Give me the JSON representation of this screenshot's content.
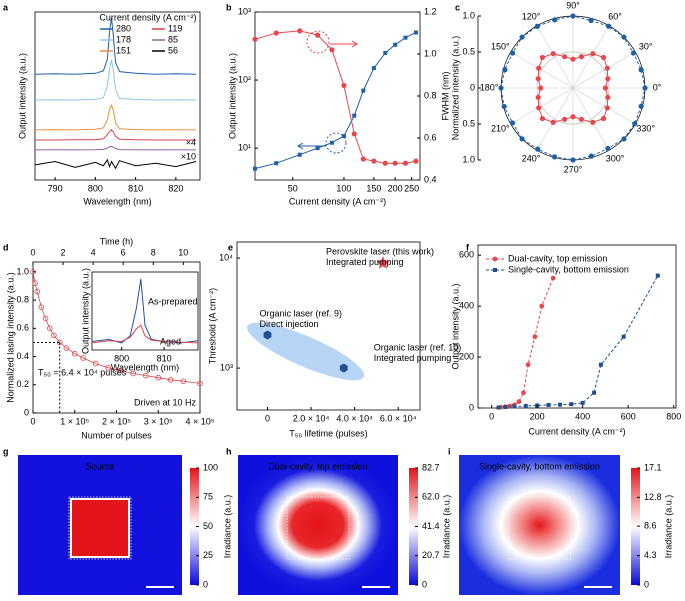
{
  "chart_data": [
    {
      "panel": "a",
      "type": "spectra",
      "xlabel": "Wavelength (nm)",
      "ylabel": "Output intensity (a.u.)",
      "legend_title": "Current density (A cm⁻²)",
      "x": [
        785,
        790,
        795,
        800,
        802,
        803,
        803.5,
        804,
        804.5,
        805,
        806,
        810,
        815,
        820,
        825
      ],
      "xlim": [
        785,
        826
      ],
      "xticks": [
        790,
        800,
        810,
        820
      ],
      "ylim": [
        0,
        10
      ],
      "series": [
        {
          "name": "280",
          "color": "#1f5fa8",
          "values": [
            6.3,
            6.32,
            6.3,
            6.35,
            6.5,
            7.2,
            8.8,
            9.65,
            8.5,
            7.0,
            6.45,
            6.35,
            6.3,
            6.32,
            6.3
          ]
        },
        {
          "name": "178",
          "color": "#8fc6ea",
          "values": [
            4.76,
            4.78,
            4.76,
            4.8,
            4.9,
            5.6,
            6.6,
            7.14,
            6.5,
            5.4,
            4.85,
            4.8,
            4.76,
            4.78,
            4.76
          ]
        },
        {
          "name": "151",
          "color": "#e8913a",
          "values": [
            2.98,
            3.0,
            2.98,
            3.02,
            3.1,
            3.6,
            4.2,
            4.46,
            4.1,
            3.4,
            3.05,
            3.0,
            2.98,
            2.99,
            2.98
          ]
        },
        {
          "name": "119",
          "color": "#d9434a",
          "values": [
            2.38,
            2.38,
            2.4,
            2.4,
            2.45,
            2.7,
            2.9,
            2.98,
            2.85,
            2.6,
            2.42,
            2.4,
            2.38,
            2.38,
            2.38
          ]
        },
        {
          "name": "85",
          "color": "#9b5fa6",
          "values": [
            1.79,
            1.8,
            1.79,
            1.8,
            1.82,
            1.9,
            1.98,
            2.0,
            1.95,
            1.88,
            1.81,
            1.8,
            1.79,
            1.8,
            1.79
          ]
        },
        {
          "name": "56",
          "color": "#000000",
          "values": [
            0.9,
            1.1,
            0.75,
            1.05,
            0.85,
            1.2,
            0.8,
            1.1,
            0.9,
            0.7,
            1.15,
            0.85,
            1.0,
            0.8,
            1.1
          ]
        }
      ],
      "annotations": [
        "×4",
        "×10"
      ]
    },
    {
      "panel": "b",
      "type": "dual-axis-line",
      "xlabel": "Current density (A cm⁻²)",
      "ylabel": "Output intensity (a.u.)",
      "y2label": "FWHM (nm)",
      "x": [
        30,
        40,
        55,
        70,
        85,
        100,
        115,
        130,
        150,
        175,
        200,
        230,
        265
      ],
      "xlim": [
        30,
        280
      ],
      "log_x": true,
      "xticks": [
        50,
        100,
        150,
        200,
        250
      ],
      "ylim": [
        3.4,
        1000
      ],
      "log_y": true,
      "yticks": [
        {
          "value": 10,
          "label": "10¹"
        },
        {
          "value": 100,
          "label": "10²"
        },
        {
          "value": 1000,
          "label": "10³"
        }
      ],
      "y2lim": [
        0.4,
        1.2
      ],
      "y2ticks": [
        0.4,
        0.6,
        0.8,
        {
          "value": 1,
          "label": "1.0"
        },
        1.2
      ],
      "series": [
        {
          "color": "#1f5fa8",
          "marker": "square",
          "values": [
            5,
            6,
            8,
            10,
            12,
            15,
            30,
            70,
            150,
            250,
            330,
            420,
            500
          ]
        },
        {
          "color": "#e8474c",
          "marker": "circle",
          "axis": "y2",
          "values": [
            1.07,
            1.1,
            1.11,
            1.09,
            1.02,
            0.85,
            0.62,
            0.5,
            0.49,
            0.48,
            0.48,
            0.48,
            0.49
          ]
        }
      ]
    },
    {
      "panel": "c",
      "type": "polar",
      "ylabel": "Normalized intensity (a.u.)",
      "theta": [
        0,
        15,
        30,
        45,
        60,
        75,
        90,
        105,
        120,
        135,
        150,
        165,
        180,
        195,
        210,
        225,
        240,
        255,
        270,
        285,
        300,
        315,
        330,
        345
      ],
      "rlim": [
        0,
        1
      ],
      "rticks": [
        0,
        0.5,
        {
          "value": 1,
          "label": "1.0"
        }
      ],
      "angle_ticks": [
        {
          "value": 0,
          "label": "0°"
        },
        {
          "value": 30,
          "label": "30°"
        },
        {
          "value": 60,
          "label": "60°"
        },
        {
          "value": 90,
          "label": "90°"
        },
        {
          "value": 120,
          "label": "120°"
        },
        {
          "value": 150,
          "label": "150°"
        },
        {
          "value": 180,
          "label": "180°"
        },
        {
          "value": 210,
          "label": "210°"
        },
        {
          "value": 240,
          "label": "240°"
        },
        {
          "value": 270,
          "label": "270°"
        },
        {
          "value": 300,
          "label": "300°"
        },
        {
          "value": 330,
          "label": "330°"
        }
      ],
      "series": [
        {
          "color": "#1f5fa8",
          "values": [
            1,
            0.98,
            0.97,
            1,
            0.99,
            0.97,
            1,
            0.98,
            0.99,
            1,
            0.97,
            0.98,
            1,
            0.99,
            0.97,
            1,
            0.98,
            0.99,
            1,
            0.98,
            0.97,
            1,
            0.99,
            0.98
          ]
        },
        {
          "color": "#e8474c",
          "values": [
            0.45,
            0.5,
            0.55,
            0.6,
            0.55,
            0.45,
            0.4,
            0.45,
            0.55,
            0.6,
            0.55,
            0.5,
            0.45,
            0.5,
            0.55,
            0.6,
            0.55,
            0.45,
            0.4,
            0.45,
            0.55,
            0.6,
            0.55,
            0.5
          ]
        }
      ]
    },
    {
      "panel": "d",
      "type": "decay",
      "xlabel": "Number of pulses",
      "x2label": "Time (h)",
      "ylabel": "Normalized lasing intensity (a.u.)",
      "x": [
        0,
        5000,
        10000,
        20000,
        30000,
        40000,
        50000,
        64000,
        80000,
        100000,
        120000,
        150000,
        180000,
        210000,
        240000,
        270000,
        300000,
        330000,
        360000,
        400000
      ],
      "values": [
        1.0,
        0.92,
        0.86,
        0.75,
        0.67,
        0.6,
        0.55,
        0.5,
        0.46,
        0.42,
        0.39,
        0.35,
        0.32,
        0.3,
        0.28,
        0.265,
        0.25,
        0.235,
        0.225,
        0.21
      ],
      "color": "#e0474c",
      "xlim": [
        0,
        400000
      ],
      "xticks": [
        0,
        {
          "value": 100000,
          "label": "1 × 10⁵"
        },
        {
          "value": 200000,
          "label": "2 × 10⁵"
        },
        {
          "value": 300000,
          "label": "3 × 10⁵"
        },
        {
          "value": 400000,
          "label": "4 × 10⁵"
        }
      ],
      "x2lim": [
        0,
        11.11
      ],
      "x2ticks": [
        0,
        2,
        4,
        6,
        8,
        10
      ],
      "ylim": [
        0,
        1.07
      ],
      "yticks": [
        0,
        0.2,
        0.4,
        0.6,
        0.8,
        {
          "value": 1,
          "label": "1.0"
        }
      ],
      "t50": 64000,
      "t50_level": 0.5,
      "t50_label": "T₅₀ = 6.4 × 10⁴ pulses",
      "note": "Driven at 10 Hz",
      "inset": {
        "xlabel": "Wavelength (nm)",
        "ylabel": "Output intensity (a.u.)",
        "x": [
          793,
          797,
          800,
          802,
          803.5,
          804.5,
          805.5,
          807,
          810,
          814,
          818
        ],
        "xlim": [
          793,
          818
        ],
        "xticks": [
          800,
          810
        ],
        "ylim": [
          0,
          1.1
        ],
        "series": [
          {
            "name": "As-prepared",
            "color": "#2b4f9c",
            "values": [
              0.12,
              0.15,
              0.1,
              0.2,
              0.6,
              1.0,
              0.35,
              0.15,
              0.12,
              0.1,
              0.13
            ]
          },
          {
            "name": "Aged",
            "color": "#e0474c",
            "values": [
              0.1,
              0.13,
              0.12,
              0.18,
              0.3,
              0.35,
              0.2,
              0.14,
              0.12,
              0.11,
              0.1
            ]
          }
        ]
      }
    },
    {
      "panel": "e",
      "type": "scatter",
      "xlabel": "T₅₀ lifetime (pulses)",
      "ylabel": "Threshold (A cm⁻²)",
      "xlim": [
        -14000,
        70000
      ],
      "xticks": [
        0,
        {
          "value": 20000,
          "label": "2.0 × 10⁴"
        },
        {
          "value": 40000,
          "label": "4.0 × 10⁴"
        },
        {
          "value": 60000,
          "label": "6.0 × 10⁴"
        }
      ],
      "ylim": [
        416,
        14000
      ],
      "log_y": true,
      "yticks": [
        {
          "value": 1000,
          "label": "10³"
        },
        {
          "value": 10000,
          "label": "10⁴"
        }
      ],
      "x": [
        0,
        35000,
        53000
      ],
      "values": [
        2000,
        1000,
        9000
      ],
      "labels": [
        [
          "Organic laser (ref. 9)",
          "Direct injection"
        ],
        [
          "Organic laser (ref. 10)",
          "Integrated pumping"
        ],
        [
          "Perovskite laser (this work)",
          "Integrated pumping"
        ]
      ],
      "colors": [
        "#1d4f91",
        "#1d4f91",
        "#e8474c"
      ],
      "markers": [
        "hexagon",
        "hexagon",
        "star"
      ]
    },
    {
      "panel": "f",
      "type": "line",
      "xlabel": "Current density (A cm⁻²)",
      "ylabel": "Output intensity (a.u.)",
      "xlim": [
        -60,
        810
      ],
      "xticks": [
        0,
        200,
        400,
        600,
        800
      ],
      "ylim": [
        0,
        640
      ],
      "yticks": [
        0,
        200,
        400,
        600
      ],
      "legend": "upper left",
      "series": [
        {
          "name": "Dual-cavity, top emission",
          "color": "#e8474c",
          "marker": "circle",
          "x": [
            40,
            60,
            80,
            100,
            120,
            140,
            160,
            190,
            220,
            270
          ],
          "values": [
            3,
            5,
            8,
            12,
            25,
            60,
            170,
            280,
            400,
            510
          ]
        },
        {
          "name": "Single-cavity, bottom emission",
          "color": "#1d4f91",
          "marker": "square",
          "x": [
            30,
            60,
            100,
            150,
            200,
            250,
            300,
            350,
            400,
            450,
            480,
            580,
            730
          ],
          "values": [
            2,
            4,
            6,
            8,
            10,
            12,
            13,
            15,
            20,
            60,
            170,
            280,
            520
          ]
        }
      ]
    },
    {
      "panel": "g",
      "type": "heatmap",
      "title": "Source",
      "colorbar_label": "Irradiance (a.u.)",
      "clim": [
        0,
        100
      ],
      "cticks": [
        0,
        25,
        50,
        75,
        100
      ]
    },
    {
      "panel": "h",
      "type": "heatmap",
      "title": "Dual-cavity, top emission",
      "colorbar_label": "Irradiance (a.u.)",
      "clim": [
        0,
        82.7
      ],
      "cticks": [
        0,
        20.7,
        41.4,
        {
          "value": 62,
          "label": "62.0"
        },
        82.7
      ]
    },
    {
      "panel": "i",
      "type": "heatmap",
      "title": "Single-cavity, bottom emission",
      "colorbar_label": "Irradiance (a.u.)",
      "clim": [
        0,
        17.1
      ],
      "cticks": [
        0,
        4.3,
        8.6,
        12.8,
        17.1
      ]
    }
  ]
}
